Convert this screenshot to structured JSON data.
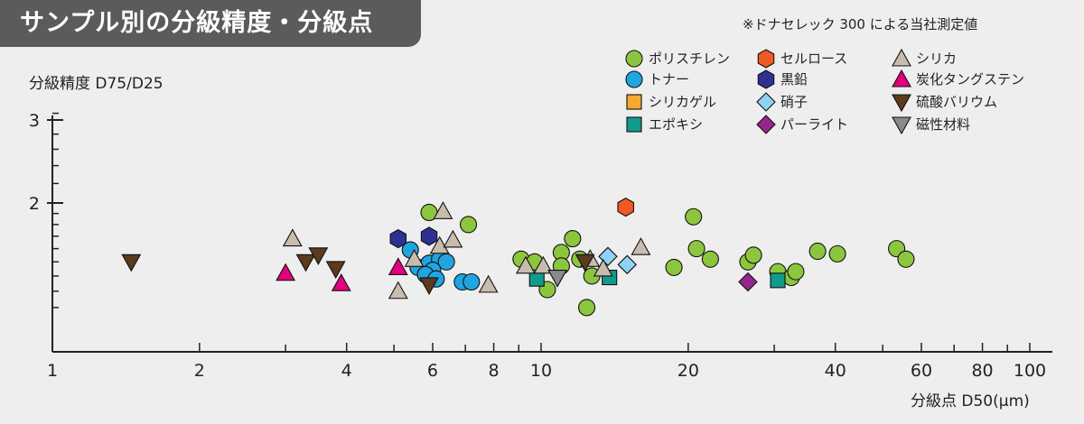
{
  "title": "サンプル別の分級精度・分級点",
  "note": "※ドナセレック 300 による当社測定値",
  "colors": {
    "background": "#eeeeee",
    "title_bg": "#5b5b5b"
  },
  "chart_data": {
    "type": "scatter",
    "title": "サンプル別の分級精度・分級点",
    "ylabel": "分級精度 D75/D25",
    "xlabel": "分級点 D50(μm)",
    "x_scale": "log",
    "y_scale": "log",
    "xlim": [
      1,
      110
    ],
    "ylim": [
      1.1,
      3.2
    ],
    "x_ticks": [
      "1",
      "2",
      "4",
      "6",
      "8",
      "10",
      "20",
      "40",
      "60",
      "80",
      "100"
    ],
    "y_ticks": [
      "2",
      "3"
    ],
    "legend_position": "top-right",
    "series": [
      {
        "name": "ポリスチレン",
        "marker": "circle",
        "color": "#8cc63f",
        "points": [
          [
            5.9,
            1.91
          ],
          [
            7.1,
            1.8
          ],
          [
            11.6,
            1.68
          ],
          [
            11.0,
            1.57
          ],
          [
            9.1,
            1.52
          ],
          [
            9.7,
            1.5
          ],
          [
            11.0,
            1.47
          ],
          [
            12.0,
            1.52
          ],
          [
            12.7,
            1.4
          ],
          [
            10.3,
            1.31
          ],
          [
            12.4,
            1.2
          ],
          [
            20.5,
            1.87
          ],
          [
            20.8,
            1.6
          ],
          [
            22.2,
            1.52
          ],
          [
            18.7,
            1.46
          ],
          [
            26.5,
            1.5
          ],
          [
            27.2,
            1.55
          ],
          [
            30.5,
            1.43
          ],
          [
            32.5,
            1.39
          ],
          [
            33.2,
            1.43
          ],
          [
            36.8,
            1.58
          ],
          [
            40.4,
            1.56
          ],
          [
            53.4,
            1.6
          ],
          [
            55.8,
            1.52
          ]
        ]
      },
      {
        "name": "トナー",
        "marker": "circle",
        "color": "#1fa5e0",
        "points": [
          [
            5.4,
            1.59
          ],
          [
            5.6,
            1.46
          ],
          [
            5.9,
            1.49
          ],
          [
            6.2,
            1.52
          ],
          [
            6.4,
            1.5
          ],
          [
            6.0,
            1.44
          ],
          [
            5.8,
            1.41
          ],
          [
            6.1,
            1.38
          ],
          [
            6.9,
            1.36
          ],
          [
            7.2,
            1.36
          ]
        ]
      },
      {
        "name": "シリカゲル",
        "marker": "square",
        "color": "#f7a830",
        "points": []
      },
      {
        "name": "エポキシ",
        "marker": "square",
        "color": "#119a8e",
        "points": [
          [
            9.8,
            1.38
          ],
          [
            13.8,
            1.39
          ],
          [
            30.5,
            1.37
          ]
        ]
      },
      {
        "name": "セルロース",
        "marker": "hexagon",
        "color": "#f15a24",
        "points": [
          [
            14.9,
            1.96
          ]
        ]
      },
      {
        "name": "黒鉛",
        "marker": "hexagon",
        "color": "#2e3192",
        "points": [
          [
            5.1,
            1.68
          ],
          [
            5.9,
            1.7
          ]
        ]
      },
      {
        "name": "硝子",
        "marker": "diamond",
        "color": "#8ed3f3",
        "points": [
          [
            13.7,
            1.54
          ],
          [
            15.0,
            1.48
          ]
        ]
      },
      {
        "name": "パーライト",
        "marker": "diamond",
        "color": "#93278f",
        "points": [
          [
            26.5,
            1.36
          ]
        ]
      },
      {
        "name": "シリカ",
        "marker": "triangle-up",
        "color": "#c8bcae",
        "points": [
          [
            3.1,
            1.68
          ],
          [
            5.1,
            1.3
          ],
          [
            5.5,
            1.52
          ],
          [
            6.2,
            1.62
          ],
          [
            6.3,
            1.92
          ],
          [
            6.6,
            1.67
          ],
          [
            7.8,
            1.34
          ],
          [
            9.3,
            1.47
          ],
          [
            10.1,
            1.47
          ],
          [
            12.6,
            1.52
          ],
          [
            13.4,
            1.45
          ],
          [
            16.0,
            1.61
          ]
        ]
      },
      {
        "name": "炭化タングステン",
        "marker": "triangle-up",
        "color": "#e5007f",
        "points": [
          [
            3.0,
            1.42
          ],
          [
            3.9,
            1.35
          ],
          [
            5.1,
            1.46
          ]
        ]
      },
      {
        "name": "硫酸バリウム",
        "marker": "triangle-down",
        "color": "#5b3a1e",
        "points": [
          [
            1.45,
            1.5
          ],
          [
            3.3,
            1.5
          ],
          [
            3.5,
            1.55
          ],
          [
            3.8,
            1.45
          ],
          [
            5.9,
            1.34
          ],
          [
            12.3,
            1.5
          ]
        ]
      },
      {
        "name": "磁性材料",
        "marker": "triangle-down",
        "color": "#8a8a8a",
        "points": [
          [
            10.8,
            1.39
          ]
        ]
      }
    ]
  }
}
